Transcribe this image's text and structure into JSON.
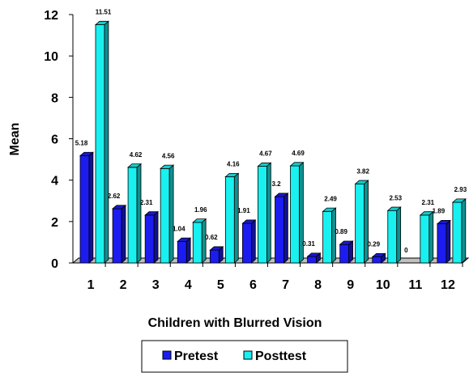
{
  "chart_data": {
    "type": "bar",
    "title": "",
    "xlabel": "Children with Blurred Vision",
    "ylabel": "Mean",
    "categories": [
      "1",
      "2",
      "3",
      "4",
      "5",
      "6",
      "7",
      "8",
      "9",
      "10",
      "11",
      "12"
    ],
    "series": [
      {
        "name": "Pretest",
        "color": "#1c1cf0",
        "values": [
          5.18,
          2.62,
          2.31,
          1.04,
          0.62,
          1.91,
          3.2,
          0.31,
          0.89,
          0.29,
          0,
          1.89
        ],
        "labels": [
          "5.18",
          "2.62",
          "2.31",
          "1.04",
          "0.62",
          "1.91",
          "3.2",
          "0.31",
          "0.89",
          "0.29",
          "0",
          "1.89"
        ]
      },
      {
        "name": "Posttest",
        "color": "#19f0f0",
        "values": [
          11.51,
          4.62,
          4.56,
          1.96,
          4.16,
          4.67,
          4.69,
          2.49,
          3.82,
          2.53,
          2.31,
          2.93
        ],
        "labels": [
          "11.51",
          "4.62",
          "4.56",
          "1.96",
          "4.16",
          "4.67",
          "4.69",
          "2.49",
          "3.82",
          "2.53",
          "2.31",
          "2.93"
        ]
      }
    ],
    "ylim": [
      0,
      12
    ],
    "yticks": [
      "0",
      "2",
      "4",
      "6",
      "8",
      "10",
      "12"
    ],
    "grid": false,
    "legend": "bottom",
    "style": "3d-columns"
  }
}
